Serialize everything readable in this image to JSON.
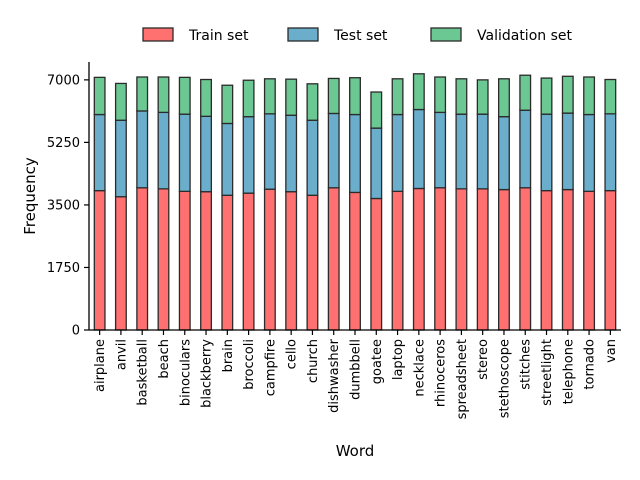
{
  "chart_data": {
    "type": "bar",
    "stacked": true,
    "xlabel": "Word",
    "ylabel": "Frequency",
    "ylim": [
      0,
      7500
    ],
    "yticks": [
      0,
      1750,
      3500,
      5250,
      7000
    ],
    "legend_position": "top-center",
    "grid": false,
    "categories": [
      "airplane",
      "anvil",
      "basketball",
      "beach",
      "binoculars",
      "blackberry",
      "brain",
      "broccoli",
      "campfire",
      "cello",
      "church",
      "dishwasher",
      "dumbbell",
      "goatee",
      "laptop",
      "necklace",
      "rhinoceros",
      "spreadsheet",
      "stereo",
      "stethoscope",
      "stitches",
      "streetlight",
      "telephone",
      "tornado",
      "van"
    ],
    "series": [
      {
        "name": "Train set",
        "color": "#ff7070",
        "values": [
          3900,
          3730,
          3980,
          3950,
          3880,
          3870,
          3770,
          3830,
          3940,
          3870,
          3770,
          3980,
          3850,
          3680,
          3880,
          3960,
          3980,
          3950,
          3950,
          3930,
          3980,
          3900,
          3930,
          3880,
          3900
        ]
      },
      {
        "name": "Test set",
        "color": "#6aaecb",
        "values": [
          2130,
          2140,
          2150,
          2140,
          2160,
          2110,
          2010,
          2140,
          2110,
          2140,
          2100,
          2080,
          2180,
          1970,
          2150,
          2210,
          2110,
          2090,
          2090,
          2040,
          2170,
          2140,
          2140,
          2150,
          2150
        ]
      },
      {
        "name": "Validation set",
        "color": "#6cc892",
        "values": [
          1040,
          1030,
          950,
          990,
          1030,
          1030,
          1070,
          1020,
          980,
          1010,
          1020,
          980,
          1030,
          1010,
          1000,
          1000,
          990,
          990,
          960,
          1060,
          980,
          1010,
          1030,
          1050,
          960
        ]
      }
    ]
  }
}
